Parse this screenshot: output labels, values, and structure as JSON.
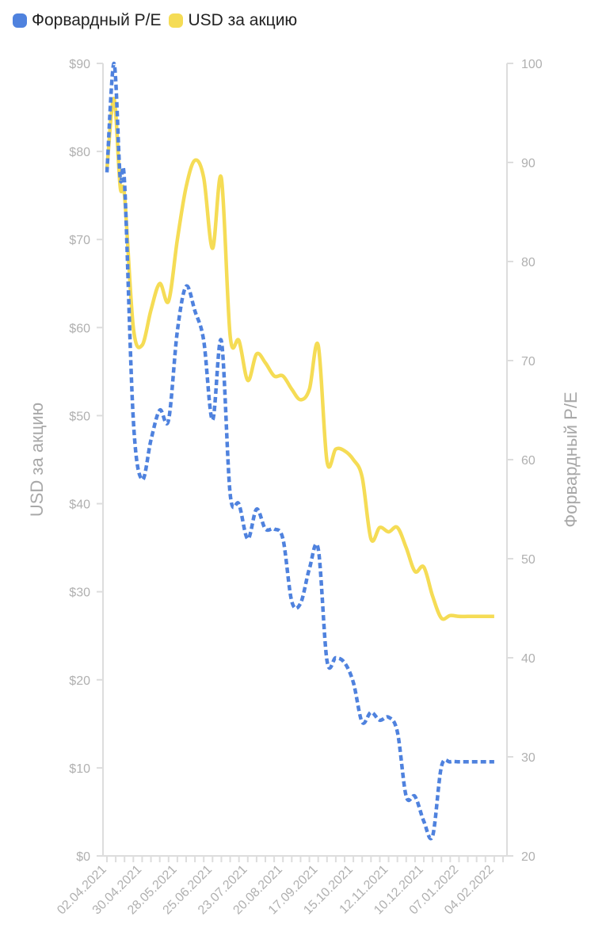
{
  "legend": {
    "pe_label": "Форвардный P/E",
    "usd_label": "USD за акцию"
  },
  "colors": {
    "pe": "#4f82de",
    "usd": "#f5dc55",
    "axis": "#dddddd",
    "tick": "#b0b0b0"
  },
  "chart_data": {
    "type": "line",
    "title": "",
    "x_tick_labels": [
      "02.04.2021",
      "30.04.2021",
      "28.05.2021",
      "25.06.2021",
      "23.07.2021",
      "20.08.2021",
      "17.09.2021",
      "15.10.2021",
      "12.11.2021",
      "10.12.2021",
      "07.01.2022",
      "04.02.2022"
    ],
    "left_axis": {
      "label": "USD за акцию",
      "range": [
        0,
        90
      ],
      "ticks": [
        "$0",
        "$10",
        "$20",
        "$30",
        "$40",
        "$50",
        "$60",
        "$70",
        "$80",
        "$90"
      ],
      "tick_values": [
        0,
        10,
        20,
        30,
        40,
        50,
        60,
        70,
        80,
        90
      ]
    },
    "right_axis": {
      "label": "Форвардный P/E",
      "range": [
        20,
        100
      ],
      "ticks": [
        "20",
        "30",
        "40",
        "50",
        "60",
        "70",
        "80",
        "90",
        "100"
      ],
      "tick_values": [
        20,
        30,
        40,
        50,
        60,
        70,
        80,
        90,
        100
      ]
    },
    "x_range": [
      0,
      45
    ],
    "grid": false,
    "legend_position": "top-left",
    "series": [
      {
        "name": "USD за акцию",
        "axis": "left",
        "style": "solid",
        "x": [
          0,
          0.8,
          1.5,
          2,
          3,
          4,
          5,
          6,
          7,
          8,
          9,
          10,
          11,
          12,
          13,
          14,
          15,
          16,
          17,
          18,
          19,
          20,
          21,
          22,
          23,
          24,
          25,
          26,
          27,
          28,
          29,
          30,
          31,
          32,
          33,
          34,
          35,
          36,
          37,
          38,
          39,
          40,
          41,
          42,
          43,
          44
        ],
        "y": [
          78,
          86,
          76,
          75,
          60,
          58,
          62,
          65,
          63,
          70,
          76,
          79,
          77,
          69,
          77,
          59,
          58.5,
          54,
          57,
          56,
          54.5,
          54.5,
          53,
          51.8,
          53,
          58,
          44.8,
          46.2,
          46,
          45,
          43,
          36,
          37.3,
          36.8,
          37.3,
          35,
          32.3,
          32.8,
          29.5,
          27,
          27.3,
          27.2,
          27.2,
          27.2,
          27.2,
          27.2
        ]
      },
      {
        "name": "Форвардный P/E",
        "axis": "right",
        "style": "dashed",
        "x": [
          0,
          0.8,
          1.5,
          2,
          3,
          4,
          5,
          6,
          7,
          8,
          9,
          10,
          11,
          12,
          13,
          14,
          15,
          16,
          17,
          18,
          19,
          20,
          21,
          22,
          23,
          24,
          25,
          26,
          27,
          28,
          29,
          30,
          31,
          32,
          33,
          34,
          35,
          36,
          37,
          38,
          39,
          40,
          41,
          42,
          43,
          44
        ],
        "y": [
          89,
          100,
          88.5,
          88,
          64,
          58,
          62,
          65,
          64,
          73,
          77.5,
          75,
          72,
          64,
          72,
          56.5,
          55.5,
          52,
          55,
          53,
          53,
          52,
          45.7,
          45.5,
          49,
          51,
          39.7,
          40,
          39.5,
          37.5,
          33.5,
          34.5,
          33.7,
          34,
          32.5,
          26,
          26,
          23.5,
          22,
          29,
          29.5,
          29.5,
          29.5,
          29.5,
          29.5,
          29.5
        ]
      }
    ]
  }
}
